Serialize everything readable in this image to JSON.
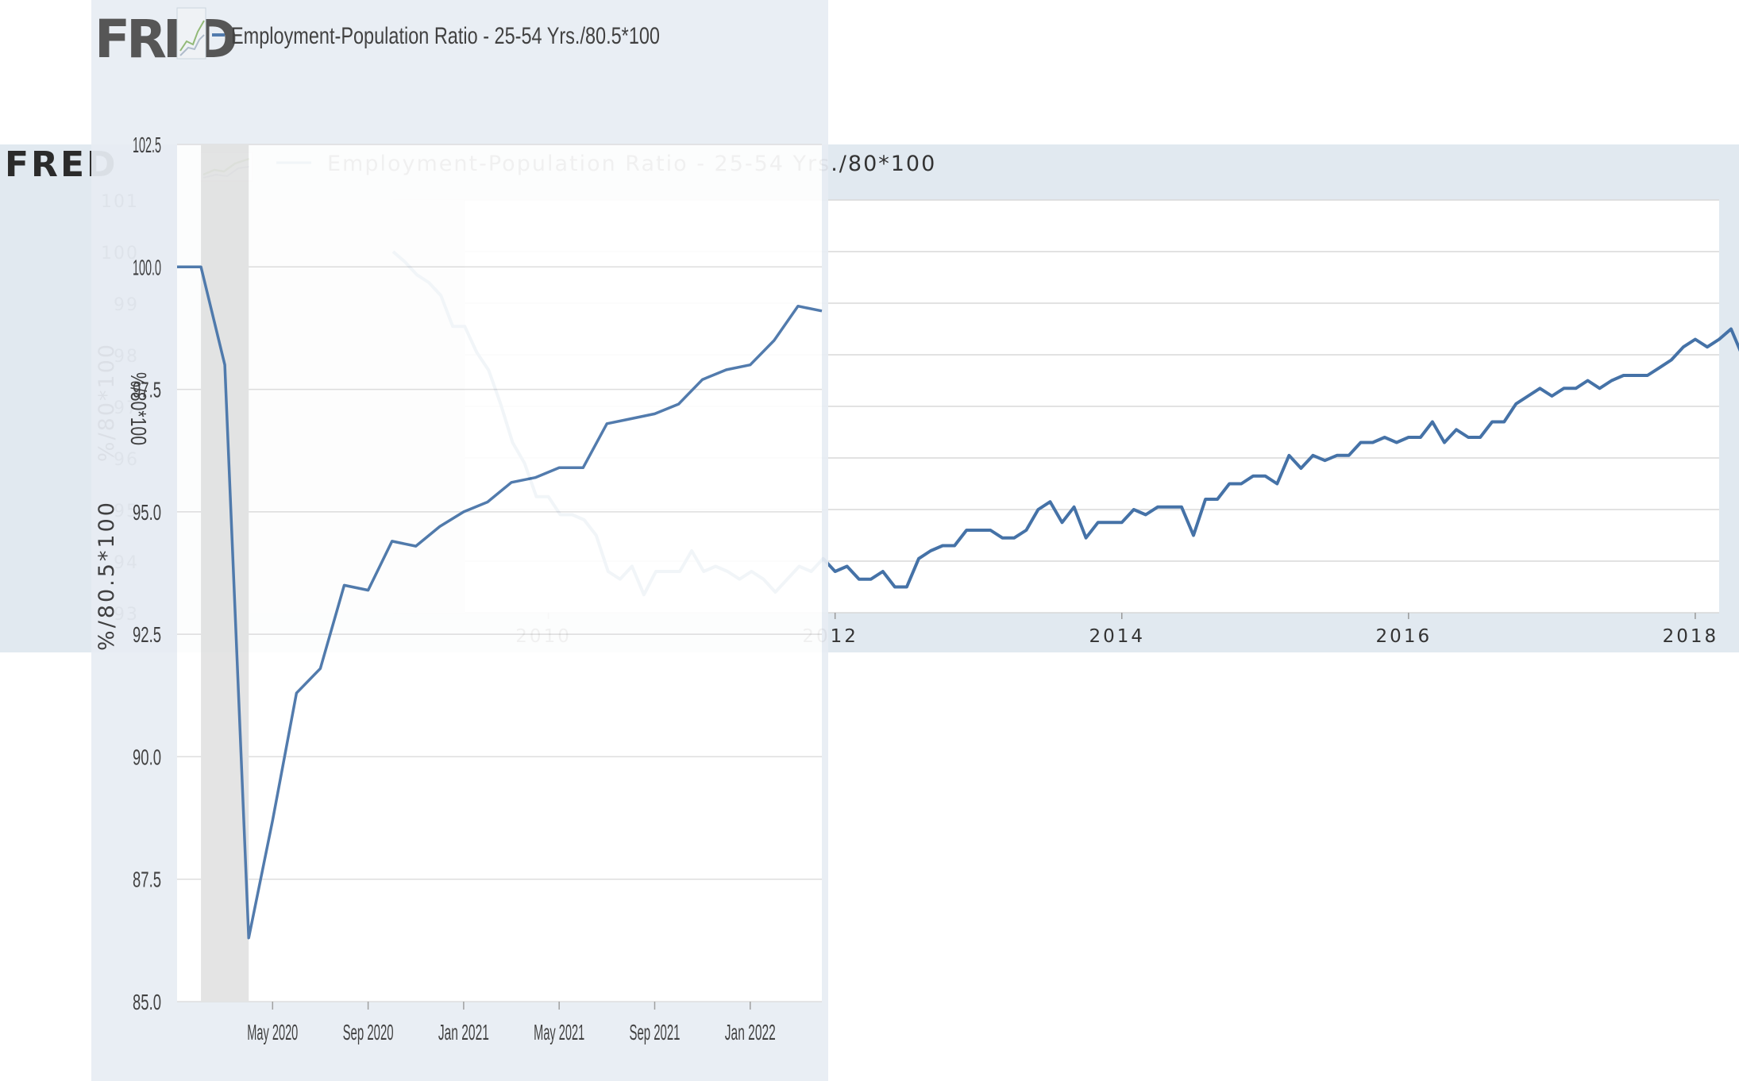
{
  "background_chart": {
    "logo": "FRED",
    "legend": "Employment-Population Ratio - 25-54 Yrs./80*100",
    "ylabel": "%/80*100",
    "colors": {
      "line": "#4572a7",
      "panel": "#e1e9f0",
      "recession": "#e3e3e3"
    }
  },
  "foreground_chart": {
    "logo": "FRED",
    "legend": "Employment-Population Ratio - 25-54 Yrs./80.5*100",
    "ylabel": "%/80.5*100",
    "colors": {
      "line": "#4572a7",
      "panel": "#e8edf4",
      "recession": "#e6e6e6"
    }
  },
  "chart_data": [
    {
      "type": "line",
      "title": "Employment-Population Ratio - 25-54 Yrs./80*100",
      "xlabel": "",
      "ylabel": "%/80*100",
      "ylim": [
        93,
        101
      ],
      "yticks": [
        "93",
        "94",
        "95",
        "96",
        "97",
        "98",
        "99",
        "100",
        "101"
      ],
      "xticks": [
        "2010",
        "2012",
        "2014",
        "2016",
        "2018"
      ],
      "xlim": [
        "2008-12",
        "2018-03"
      ],
      "recession": [
        "2007-12",
        "2009-06"
      ],
      "series": [
        {
          "name": "Employment-Population Ratio - 25-54 Yrs./80*100",
          "x_start": "2008-12",
          "frequency": "monthly",
          "values": [
            100.0,
            99.8,
            99.55,
            99.4,
            99.15,
            98.55,
            98.55,
            98.05,
            97.7,
            97.05,
            96.3,
            95.9,
            95.25,
            95.25,
            94.9,
            94.9,
            94.8,
            94.5,
            93.8,
            93.65,
            93.9,
            93.35,
            93.8,
            93.8,
            93.8,
            94.2,
            93.8,
            93.9,
            93.8,
            93.65,
            93.8,
            93.65,
            93.4,
            93.65,
            93.9,
            93.8,
            94.05,
            93.8,
            93.9,
            93.65,
            93.65,
            93.8,
            93.5,
            93.5,
            94.05,
            94.2,
            94.3,
            94.3,
            94.6,
            94.6,
            94.6,
            94.45,
            94.45,
            94.6,
            95.0,
            95.15,
            94.75,
            95.05,
            94.45,
            94.75,
            94.75,
            94.75,
            95.0,
            94.9,
            95.05,
            95.05,
            95.05,
            94.5,
            95.2,
            95.2,
            95.5,
            95.5,
            95.65,
            95.65,
            95.5,
            96.05,
            95.8,
            96.05,
            95.95,
            96.05,
            96.05,
            96.3,
            96.3,
            96.4,
            96.3,
            96.4,
            96.4,
            96.7,
            96.3,
            96.55,
            96.4,
            96.4,
            96.7,
            96.7,
            97.05,
            97.2,
            97.35,
            97.2,
            97.35,
            97.35,
            97.5,
            97.35,
            97.5,
            97.6,
            97.6,
            97.6,
            97.75,
            97.9,
            98.15,
            98.3,
            98.15,
            98.3,
            98.5,
            97.95,
            98.75,
            98.35,
            98.6,
            98.75,
            98.6
          ]
        }
      ]
    },
    {
      "type": "line",
      "title": "Employment-Population Ratio - 25-54 Yrs./80.5*100",
      "xlabel": "",
      "ylabel": "%/80.5*100",
      "ylim": [
        85.0,
        102.5
      ],
      "yticks": [
        "85.0",
        "87.5",
        "90.0",
        "92.5",
        "95.0",
        "97.5",
        "100.0",
        "102.5"
      ],
      "xticks": [
        "May 2020",
        "Sep 2020",
        "Jan 2021",
        "May 2021",
        "Sep 2021",
        "Jan 2022"
      ],
      "xlim": [
        "2020-01",
        "2022-04"
      ],
      "recession": [
        "2020-02",
        "2020-04"
      ],
      "series": [
        {
          "name": "Employment-Population Ratio - 25-54 Yrs./80.5*100",
          "x": [
            "2020-01",
            "2020-02",
            "2020-03",
            "2020-04",
            "2020-05",
            "2020-06",
            "2020-07",
            "2020-08",
            "2020-09",
            "2020-10",
            "2020-11",
            "2020-12",
            "2021-01",
            "2021-02",
            "2021-03",
            "2021-04",
            "2021-05",
            "2021-06",
            "2021-07",
            "2021-08",
            "2021-09",
            "2021-10",
            "2021-11",
            "2021-12",
            "2022-01",
            "2022-02",
            "2022-03",
            "2022-04"
          ],
          "values": [
            100.0,
            100.0,
            98.0,
            86.3,
            88.7,
            91.3,
            91.8,
            93.5,
            93.4,
            94.4,
            94.3,
            94.7,
            95.0,
            95.2,
            95.6,
            95.7,
            95.9,
            95.9,
            96.8,
            96.9,
            97.0,
            97.2,
            97.7,
            97.9,
            98.0,
            98.5,
            99.2,
            99.1
          ]
        }
      ]
    }
  ]
}
